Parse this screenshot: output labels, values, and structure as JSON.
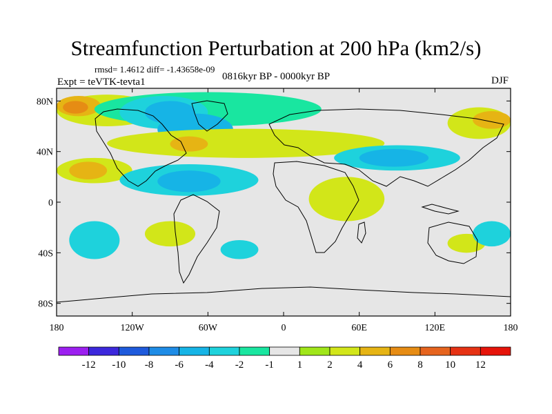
{
  "header": {
    "title": "Streamfunction Perturbation at 200 hPa (km2/s)",
    "stats": "rmsd= 1.4612 diff= -1.43658e-09",
    "experiment": "Expt = teVTK-tevta1",
    "period": "0816kyr BP - 0000kyr BP",
    "season": "DJF"
  },
  "chart_data": {
    "type": "heatmap",
    "title": "Streamfunction Perturbation at 200 hPa (km2/s)",
    "x_axis": {
      "range": [
        -180,
        180
      ],
      "ticks": [
        {
          "value": -180,
          "label": "180"
        },
        {
          "value": -120,
          "label": "120W"
        },
        {
          "value": -60,
          "label": "60W"
        },
        {
          "value": 0,
          "label": "0"
        },
        {
          "value": 60,
          "label": "60E"
        },
        {
          "value": 120,
          "label": "120E"
        },
        {
          "value": 180,
          "label": "180"
        }
      ]
    },
    "y_axis": {
      "range": [
        -90,
        90
      ],
      "ticks": [
        {
          "value": 80,
          "label": "80N"
        },
        {
          "value": 40,
          "label": "40N"
        },
        {
          "value": 0,
          "label": "0"
        },
        {
          "value": -40,
          "label": "40S"
        },
        {
          "value": -80,
          "label": "80S"
        }
      ]
    },
    "colorbar": {
      "boundaries": [
        "-12",
        "-10",
        "-8",
        "-6",
        "-4",
        "-2",
        "-1",
        "1",
        "2",
        "4",
        "6",
        "8",
        "10",
        "12"
      ],
      "colors": [
        "#9c1ff0",
        "#3c28dc",
        "#1e5adc",
        "#1e8ce6",
        "#16b4e6",
        "#1ed2dc",
        "#19e6a0",
        "#e6e6e6",
        "#a0e619",
        "#d2e619",
        "#e6b414",
        "#e68c14",
        "#e6641e",
        "#e63214",
        "#e6140a"
      ]
    },
    "regions": [
      {
        "bin": "2",
        "lon": [
          -180,
          -100
        ],
        "lat": [
          60,
          85
        ]
      },
      {
        "bin": "4",
        "lon": [
          -180,
          -145
        ],
        "lat": [
          68,
          84
        ]
      },
      {
        "bin": "6",
        "lon": [
          -175,
          -155
        ],
        "lat": [
          70,
          80
        ]
      },
      {
        "bin": "-1",
        "lon": [
          -150,
          30
        ],
        "lat": [
          60,
          87
        ]
      },
      {
        "bin": "-2",
        "lon": [
          -130,
          -60
        ],
        "lat": [
          58,
          84
        ]
      },
      {
        "bin": "-4",
        "lon": [
          -110,
          -70
        ],
        "lat": [
          62,
          80
        ]
      },
      {
        "bin": "-4",
        "lon": [
          -100,
          -40
        ],
        "lat": [
          45,
          70
        ]
      },
      {
        "bin": "2",
        "lon": [
          -180,
          -120
        ],
        "lat": [
          15,
          35
        ]
      },
      {
        "bin": "4",
        "lon": [
          -170,
          -140
        ],
        "lat": [
          18,
          32
        ]
      },
      {
        "bin": "2",
        "lon": [
          -140,
          80
        ],
        "lat": [
          35,
          58
        ]
      },
      {
        "bin": "4",
        "lon": [
          -90,
          -60
        ],
        "lat": [
          40,
          52
        ]
      },
      {
        "bin": "-2",
        "lon": [
          -130,
          -20
        ],
        "lat": [
          5,
          30
        ]
      },
      {
        "bin": "-4",
        "lon": [
          -100,
          -50
        ],
        "lat": [
          8,
          25
        ]
      },
      {
        "bin": "-2",
        "lon": [
          40,
          140
        ],
        "lat": [
          25,
          45
        ]
      },
      {
        "bin": "-4",
        "lon": [
          60,
          115
        ],
        "lat": [
          28,
          42
        ]
      },
      {
        "bin": "2",
        "lon": [
          20,
          80
        ],
        "lat": [
          -15,
          20
        ]
      },
      {
        "bin": "2",
        "lon": [
          130,
          180
        ],
        "lat": [
          50,
          75
        ]
      },
      {
        "bin": "4",
        "lon": [
          150,
          180
        ],
        "lat": [
          58,
          72
        ]
      },
      {
        "bin": "-2",
        "lon": [
          -170,
          -130
        ],
        "lat": [
          -45,
          -15
        ]
      },
      {
        "bin": "2",
        "lon": [
          -110,
          -70
        ],
        "lat": [
          -35,
          -15
        ]
      },
      {
        "bin": "-2",
        "lon": [
          -50,
          -20
        ],
        "lat": [
          -45,
          -30
        ]
      },
      {
        "bin": "2",
        "lon": [
          130,
          160
        ],
        "lat": [
          -40,
          -25
        ]
      },
      {
        "bin": "-2",
        "lon": [
          150,
          180
        ],
        "lat": [
          -35,
          -15
        ]
      }
    ]
  }
}
